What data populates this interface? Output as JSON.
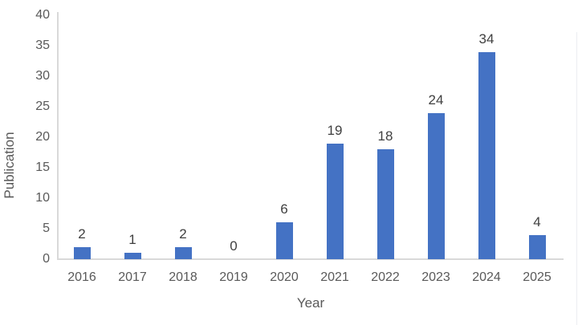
{
  "chart_data": {
    "type": "bar",
    "title": "",
    "xlabel": "Year",
    "ylabel": "Publication",
    "categories": [
      "2016",
      "2017",
      "2018",
      "2019",
      "2020",
      "2021",
      "2022",
      "2023",
      "2024",
      "2025"
    ],
    "values": [
      2,
      1,
      2,
      0,
      6,
      19,
      18,
      24,
      34,
      4
    ],
    "yticks": [
      0,
      5,
      10,
      15,
      20,
      25,
      30,
      35,
      40
    ],
    "ylim": [
      0,
      40
    ],
    "grid": false,
    "legend": "none",
    "data_labels_shown": true
  },
  "style": {
    "bar_color": "#4472C4",
    "axis_line_color": "#D9D9D9",
    "tick_text_color": "#595959",
    "data_label_color": "#404040",
    "background_color": "#FFFFFF"
  }
}
